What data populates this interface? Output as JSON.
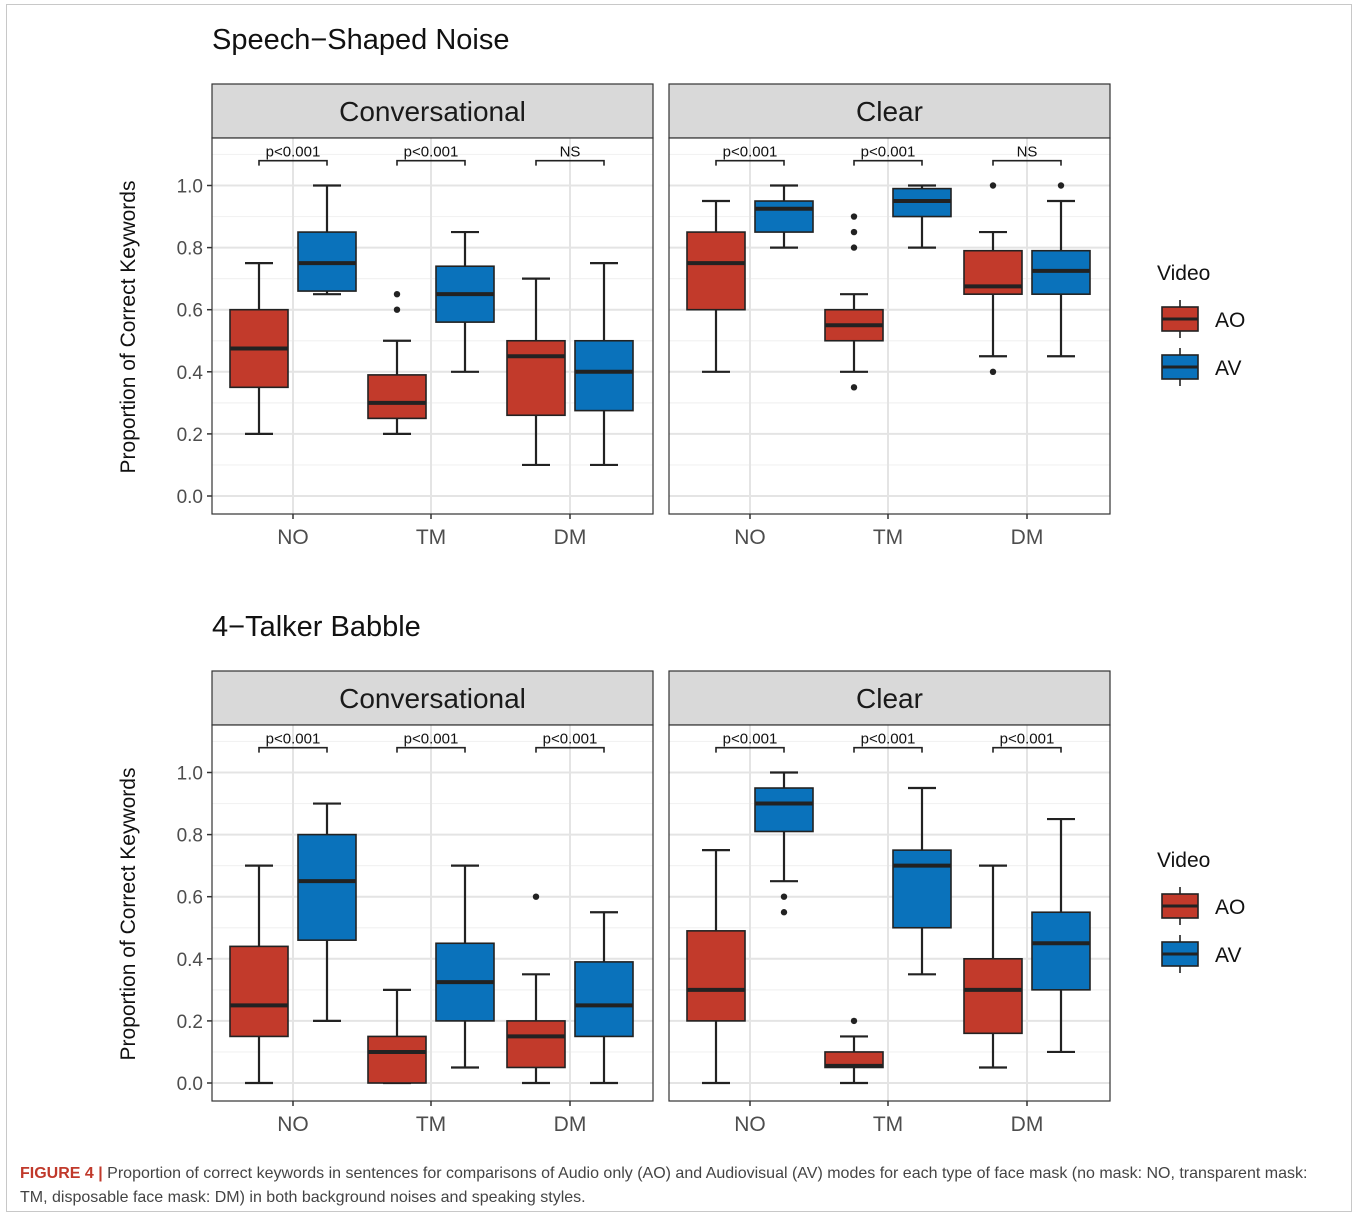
{
  "caption": {
    "label": "FIGURE 4 |",
    "text": "Proportion of correct keywords in sentences for comparisons of Audio only (AO) and Audiovisual (AV) modes for each type of face mask (no mask: NO, transparent mask: TM, disposable face mask: DM) in both background noises and speaking styles."
  },
  "colors": {
    "AO": "#c23a2b",
    "AV": "#0a72bb"
  },
  "chart_data": [
    {
      "type": "boxplot",
      "title": "Speech−Shaped Noise",
      "ylabel": "Proportion of Correct Keywords",
      "ylim": [
        -0.05,
        1.15
      ],
      "yticks": [
        "0.0",
        "0.2",
        "0.4",
        "0.6",
        "0.8",
        "1.0"
      ],
      "categories": [
        "NO",
        "TM",
        "DM"
      ],
      "legend": {
        "title": "Video",
        "entries": [
          "AO",
          "AV"
        ],
        "position": "right"
      },
      "grid": true,
      "facets": [
        {
          "name": "Conversational",
          "annotations": [
            "p<0.001",
            "p<0.001",
            "NS"
          ],
          "boxes": [
            {
              "category": "NO",
              "series": "AO",
              "min": 0.2,
              "q1": 0.35,
              "median": 0.475,
              "q3": 0.6,
              "max": 0.75,
              "outliers": []
            },
            {
              "category": "NO",
              "series": "AV",
              "min": 0.65,
              "q1": 0.66,
              "median": 0.75,
              "q3": 0.85,
              "max": 1.0,
              "outliers": []
            },
            {
              "category": "TM",
              "series": "AO",
              "min": 0.2,
              "q1": 0.25,
              "median": 0.3,
              "q3": 0.39,
              "max": 0.5,
              "outliers": [
                0.6,
                0.65
              ]
            },
            {
              "category": "TM",
              "series": "AV",
              "min": 0.4,
              "q1": 0.56,
              "median": 0.65,
              "q3": 0.74,
              "max": 0.85,
              "outliers": []
            },
            {
              "category": "DM",
              "series": "AO",
              "min": 0.1,
              "q1": 0.26,
              "median": 0.45,
              "q3": 0.5,
              "max": 0.7,
              "outliers": []
            },
            {
              "category": "DM",
              "series": "AV",
              "min": 0.1,
              "q1": 0.275,
              "median": 0.4,
              "q3": 0.5,
              "max": 0.75,
              "outliers": []
            }
          ]
        },
        {
          "name": "Clear",
          "annotations": [
            "p<0.001",
            "p<0.001",
            "NS"
          ],
          "boxes": [
            {
              "category": "NO",
              "series": "AO",
              "min": 0.4,
              "q1": 0.6,
              "median": 0.75,
              "q3": 0.85,
              "max": 0.95,
              "outliers": []
            },
            {
              "category": "NO",
              "series": "AV",
              "min": 0.8,
              "q1": 0.85,
              "median": 0.925,
              "q3": 0.95,
              "max": 1.0,
              "outliers": []
            },
            {
              "category": "TM",
              "series": "AO",
              "min": 0.4,
              "q1": 0.5,
              "median": 0.55,
              "q3": 0.6,
              "max": 0.65,
              "outliers": [
                0.35,
                0.8,
                0.85,
                0.9
              ]
            },
            {
              "category": "TM",
              "series": "AV",
              "min": 0.8,
              "q1": 0.9,
              "median": 0.95,
              "q3": 0.99,
              "max": 1.0,
              "outliers": []
            },
            {
              "category": "DM",
              "series": "AO",
              "min": 0.45,
              "q1": 0.65,
              "median": 0.675,
              "q3": 0.79,
              "max": 0.85,
              "outliers": [
                0.4,
                1.0
              ]
            },
            {
              "category": "DM",
              "series": "AV",
              "min": 0.45,
              "q1": 0.65,
              "median": 0.725,
              "q3": 0.79,
              "max": 0.95,
              "outliers": [
                1.0
              ]
            }
          ]
        }
      ]
    },
    {
      "type": "boxplot",
      "title": "4−Talker Babble",
      "ylabel": "Proportion of Correct Keywords",
      "ylim": [
        -0.05,
        1.15
      ],
      "yticks": [
        "0.0",
        "0.2",
        "0.4",
        "0.6",
        "0.8",
        "1.0"
      ],
      "categories": [
        "NO",
        "TM",
        "DM"
      ],
      "legend": {
        "title": "Video",
        "entries": [
          "AO",
          "AV"
        ],
        "position": "right"
      },
      "grid": true,
      "facets": [
        {
          "name": "Conversational",
          "annotations": [
            "p<0.001",
            "p<0.001",
            "p<0.001"
          ],
          "boxes": [
            {
              "category": "NO",
              "series": "AO",
              "min": 0.0,
              "q1": 0.15,
              "median": 0.25,
              "q3": 0.44,
              "max": 0.7,
              "outliers": []
            },
            {
              "category": "NO",
              "series": "AV",
              "min": 0.2,
              "q1": 0.46,
              "median": 0.65,
              "q3": 0.8,
              "max": 0.9,
              "outliers": []
            },
            {
              "category": "TM",
              "series": "AO",
              "min": 0.0,
              "q1": 0.0,
              "median": 0.1,
              "q3": 0.15,
              "max": 0.3,
              "outliers": []
            },
            {
              "category": "TM",
              "series": "AV",
              "min": 0.05,
              "q1": 0.2,
              "median": 0.325,
              "q3": 0.45,
              "max": 0.7,
              "outliers": []
            },
            {
              "category": "DM",
              "series": "AO",
              "min": 0.0,
              "q1": 0.05,
              "median": 0.15,
              "q3": 0.2,
              "max": 0.35,
              "outliers": [
                0.6
              ]
            },
            {
              "category": "DM",
              "series": "AV",
              "min": 0.0,
              "q1": 0.15,
              "median": 0.25,
              "q3": 0.39,
              "max": 0.55,
              "outliers": []
            }
          ]
        },
        {
          "name": "Clear",
          "annotations": [
            "p<0.001",
            "p<0.001",
            "p<0.001"
          ],
          "boxes": [
            {
              "category": "NO",
              "series": "AO",
              "min": 0.0,
              "q1": 0.2,
              "median": 0.3,
              "q3": 0.49,
              "max": 0.75,
              "outliers": []
            },
            {
              "category": "NO",
              "series": "AV",
              "min": 0.65,
              "q1": 0.81,
              "median": 0.9,
              "q3": 0.95,
              "max": 1.0,
              "outliers": [
                0.55,
                0.6
              ]
            },
            {
              "category": "TM",
              "series": "AO",
              "min": 0.0,
              "q1": 0.05,
              "median": 0.055,
              "q3": 0.1,
              "max": 0.15,
              "outliers": [
                0.2
              ]
            },
            {
              "category": "TM",
              "series": "AV",
              "min": 0.35,
              "q1": 0.5,
              "median": 0.7,
              "q3": 0.75,
              "max": 0.95,
              "outliers": []
            },
            {
              "category": "DM",
              "series": "AO",
              "min": 0.05,
              "q1": 0.16,
              "median": 0.3,
              "q3": 0.4,
              "max": 0.7,
              "outliers": []
            },
            {
              "category": "DM",
              "series": "AV",
              "min": 0.1,
              "q1": 0.3,
              "median": 0.45,
              "q3": 0.55,
              "max": 0.85,
              "outliers": []
            }
          ]
        }
      ]
    }
  ]
}
